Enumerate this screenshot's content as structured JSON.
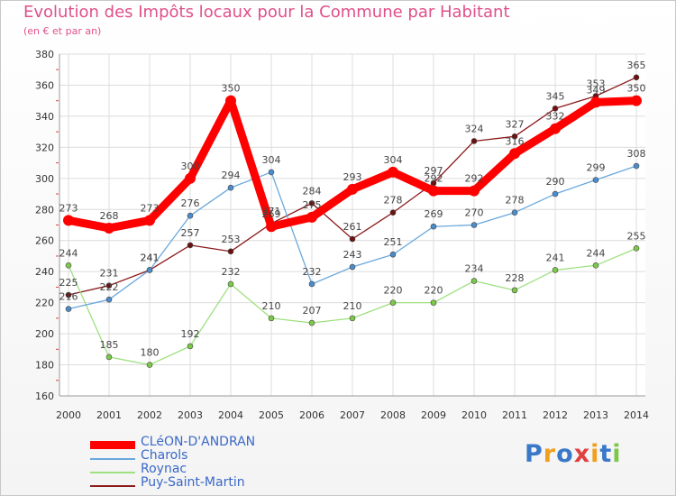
{
  "chart_data": {
    "type": "line",
    "title": "Evolution des Impôts locaux pour la Commune par Habitant",
    "subtitle": "(en € et par an)",
    "xlabel": "",
    "ylabel": "",
    "ylim": [
      160,
      380
    ],
    "yticks": [
      160,
      180,
      200,
      220,
      240,
      260,
      280,
      300,
      320,
      340,
      360,
      380
    ],
    "categories": [
      "2000",
      "2001",
      "2002",
      "2003",
      "2004",
      "2005",
      "2006",
      "2007",
      "2008",
      "2009",
      "2010",
      "2011",
      "2012",
      "2013",
      "2014"
    ],
    "grid": true,
    "legend_position": "bottom-left",
    "series": [
      {
        "name": "Puy-Saint-Martin",
        "color": "#8b1a1a",
        "point_color": "#6e1010",
        "values": [
          225,
          231,
          241,
          257,
          253,
          271,
          284,
          261,
          278,
          297,
          324,
          327,
          345,
          353,
          365
        ]
      },
      {
        "name": "Roynac",
        "color": "#9fe080",
        "point_color": "#7cc848",
        "values": [
          244,
          185,
          180,
          192,
          232,
          210,
          207,
          210,
          220,
          220,
          234,
          228,
          241,
          244,
          255
        ]
      },
      {
        "name": "Charols",
        "color": "#6aa8dc",
        "point_color": "#4a8ccc",
        "values": [
          216,
          222,
          241,
          276,
          294,
          304,
          232,
          243,
          251,
          269,
          270,
          278,
          290,
          299,
          308
        ]
      },
      {
        "name": "CLéON-D'ANDRAN",
        "color": "#ff0000",
        "point_color": "#ff0000",
        "values": [
          273,
          268,
          273,
          300,
          350,
          269,
          275,
          293,
          304,
          292,
          292,
          316,
          332,
          349,
          350
        ]
      }
    ],
    "legend_order": [
      "CLéON-D'ANDRAN",
      "Charols",
      "Roynac",
      "Puy-Saint-Martin"
    ]
  },
  "logo": {
    "text": "Proxiti"
  }
}
